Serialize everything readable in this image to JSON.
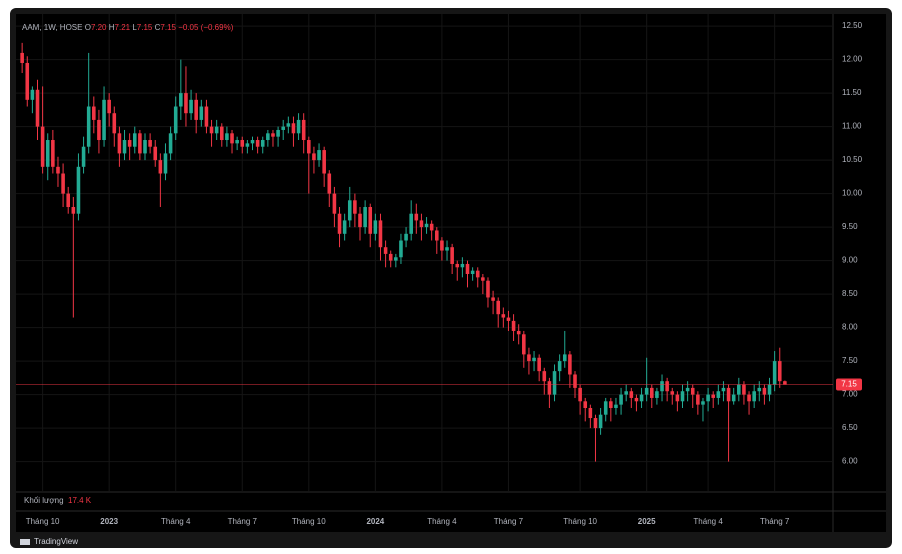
{
  "chart_data": {
    "type": "candlestick",
    "header": {
      "symbol": "AAM, 1W, HOSE",
      "o_key": "O",
      "o_val": "7.20",
      "h_key": "H",
      "h_val": "7.21",
      "l_key": "L",
      "l_val": "7.15",
      "c_key": "C",
      "c_val": "7.15",
      "change": "−0.05 (−0.69%)"
    },
    "open": [
      12.1,
      11.95,
      11.4,
      11.55,
      11.0,
      10.4,
      10.8,
      10.4,
      10.3,
      10.0,
      9.8,
      9.7,
      10.4,
      10.7,
      11.3,
      11.1,
      10.8,
      11.4,
      11.2,
      10.9,
      10.6,
      10.8,
      10.7,
      10.9,
      10.6,
      10.8,
      10.7,
      10.5,
      10.3,
      10.6,
      10.9,
      11.3,
      11.5,
      11.2,
      11.4,
      11.1,
      11.3,
      11.0,
      10.9,
      11.0,
      10.8,
      10.9,
      10.75,
      10.8,
      10.7,
      10.75,
      10.8,
      10.7,
      10.8,
      10.9,
      10.85,
      10.95,
      11.0,
      11.05,
      10.9,
      11.1,
      10.8,
      10.6,
      10.5,
      10.65,
      10.3,
      10.0,
      9.7,
      9.4,
      9.6,
      9.9,
      9.7,
      9.5,
      9.8,
      9.4,
      9.6,
      9.2,
      9.1,
      9.0,
      9.05,
      9.3,
      9.4,
      9.7,
      9.6,
      9.5,
      9.55,
      9.45,
      9.3,
      9.15,
      9.2,
      8.95,
      8.9,
      8.95,
      8.8,
      8.85,
      8.75,
      8.7,
      8.45,
      8.4,
      8.2,
      8.15,
      8.1,
      7.95,
      7.9,
      7.6,
      7.5,
      7.55,
      7.35,
      7.2,
      7.0,
      7.35,
      7.5,
      7.6,
      7.3,
      7.1,
      6.9,
      6.8,
      6.65,
      6.5,
      6.7,
      6.9,
      6.8,
      6.85,
      7.0,
      7.05,
      6.95,
      6.9,
      7.0,
      7.1,
      6.95,
      7.05,
      7.2,
      7.05,
      7.0,
      6.9,
      7.05,
      7.1,
      7.0,
      6.85,
      6.9,
      7.0,
      6.95,
      7.05,
      7.1,
      6.9,
      7.0,
      7.15,
      7.0,
      6.9,
      7.05,
      7.1,
      7.0,
      7.15,
      7.5,
      7.2
    ],
    "high": [
      12.25,
      12.05,
      11.6,
      11.7,
      11.6,
      10.9,
      10.95,
      10.55,
      10.45,
      10.1,
      9.95,
      10.6,
      10.85,
      12.1,
      11.45,
      11.25,
      11.6,
      11.5,
      11.3,
      11.0,
      10.95,
      10.9,
      11.0,
      10.95,
      10.9,
      10.9,
      10.8,
      10.6,
      10.75,
      11.0,
      11.45,
      12.0,
      11.9,
      11.55,
      11.5,
      11.4,
      11.4,
      11.1,
      11.1,
      11.05,
      11.0,
      10.95,
      10.85,
      10.85,
      10.8,
      10.85,
      10.85,
      10.85,
      10.95,
      10.95,
      11.0,
      11.1,
      11.15,
      11.15,
      11.2,
      11.2,
      10.85,
      10.7,
      10.75,
      10.7,
      10.35,
      10.1,
      9.8,
      9.7,
      10.1,
      10.0,
      9.8,
      9.9,
      9.85,
      9.7,
      9.7,
      9.3,
      9.15,
      9.1,
      9.4,
      9.5,
      9.9,
      9.85,
      9.7,
      9.65,
      9.6,
      9.5,
      9.35,
      9.3,
      9.25,
      9.0,
      9.05,
      9.0,
      8.9,
      8.9,
      8.8,
      8.75,
      8.55,
      8.45,
      8.3,
      8.25,
      8.2,
      8.05,
      7.95,
      7.7,
      7.65,
      7.6,
      7.4,
      7.25,
      7.45,
      7.6,
      7.95,
      7.65,
      7.35,
      7.15,
      6.95,
      6.85,
      6.7,
      6.8,
      6.95,
      6.95,
      6.95,
      7.1,
      7.15,
      7.1,
      7.0,
      7.1,
      7.55,
      7.15,
      7.1,
      7.3,
      7.25,
      7.1,
      7.05,
      7.15,
      7.2,
      7.15,
      7.05,
      6.95,
      7.1,
      7.05,
      7.15,
      7.2,
      7.15,
      7.1,
      7.25,
      7.2,
      7.05,
      7.15,
      7.2,
      7.15,
      7.25,
      7.65,
      7.7,
      7.21
    ],
    "low": [
      11.8,
      11.3,
      11.2,
      10.8,
      10.3,
      10.2,
      10.3,
      10.1,
      9.8,
      9.7,
      8.15,
      9.6,
      10.3,
      10.6,
      10.9,
      10.6,
      10.7,
      11.0,
      10.7,
      10.4,
      10.5,
      10.5,
      10.6,
      10.5,
      10.5,
      10.6,
      10.4,
      9.8,
      10.2,
      10.5,
      10.8,
      11.1,
      11.0,
      11.1,
      10.9,
      11.0,
      10.9,
      10.7,
      10.8,
      10.7,
      10.7,
      10.6,
      10.65,
      10.6,
      10.6,
      10.65,
      10.6,
      10.6,
      10.7,
      10.7,
      10.7,
      10.8,
      10.9,
      10.7,
      10.8,
      10.6,
      10.0,
      10.3,
      10.4,
      10.1,
      9.8,
      9.5,
      9.2,
      9.3,
      9.5,
      9.5,
      9.3,
      9.4,
      9.2,
      9.3,
      9.0,
      8.9,
      8.9,
      8.9,
      8.95,
      9.2,
      9.3,
      9.4,
      9.3,
      9.4,
      9.3,
      9.1,
      9.0,
      9.0,
      8.8,
      8.7,
      8.75,
      8.6,
      8.7,
      8.6,
      8.5,
      8.3,
      8.2,
      8.0,
      8.0,
      7.95,
      7.8,
      7.75,
      7.4,
      7.3,
      7.35,
      7.2,
      7.0,
      6.8,
      6.9,
      7.2,
      7.4,
      7.1,
      6.95,
      6.7,
      6.6,
      6.5,
      6.0,
      6.4,
      6.6,
      6.6,
      6.7,
      6.7,
      6.9,
      6.8,
      6.75,
      6.8,
      6.9,
      6.8,
      6.85,
      6.9,
      6.9,
      6.85,
      6.75,
      6.8,
      6.9,
      6.8,
      6.7,
      6.6,
      6.75,
      6.8,
      6.85,
      6.9,
      6.0,
      6.85,
      6.9,
      6.85,
      6.7,
      6.8,
      6.9,
      6.85,
      6.9,
      7.05,
      7.1,
      7.15
    ],
    "close": [
      11.95,
      11.4,
      11.55,
      11.0,
      10.4,
      10.8,
      10.4,
      10.3,
      10.0,
      9.8,
      9.7,
      10.4,
      10.7,
      11.3,
      11.1,
      10.8,
      11.4,
      11.2,
      10.9,
      10.6,
      10.8,
      10.7,
      10.9,
      10.6,
      10.8,
      10.7,
      10.5,
      10.3,
      10.6,
      10.9,
      11.3,
      11.5,
      11.2,
      11.4,
      11.1,
      11.3,
      11.0,
      10.9,
      11.0,
      10.8,
      10.9,
      10.75,
      10.8,
      10.7,
      10.75,
      10.8,
      10.7,
      10.8,
      10.9,
      10.85,
      10.95,
      11.0,
      11.05,
      10.9,
      11.1,
      10.8,
      10.6,
      10.5,
      10.65,
      10.3,
      10.0,
      9.7,
      9.4,
      9.6,
      9.9,
      9.7,
      9.5,
      9.8,
      9.4,
      9.6,
      9.2,
      9.1,
      9.0,
      9.05,
      9.3,
      9.4,
      9.7,
      9.6,
      9.5,
      9.55,
      9.45,
      9.3,
      9.15,
      9.2,
      8.95,
      8.9,
      8.95,
      8.8,
      8.85,
      8.75,
      8.7,
      8.45,
      8.4,
      8.2,
      8.15,
      8.1,
      7.95,
      7.9,
      7.6,
      7.5,
      7.55,
      7.35,
      7.2,
      7.0,
      7.35,
      7.5,
      7.6,
      7.3,
      7.1,
      6.9,
      6.8,
      6.65,
      6.5,
      6.7,
      6.9,
      6.8,
      6.85,
      7.0,
      7.05,
      6.95,
      6.9,
      7.0,
      7.1,
      6.95,
      7.05,
      7.2,
      7.05,
      7.0,
      6.9,
      7.05,
      7.1,
      7.0,
      6.85,
      6.9,
      7.0,
      6.95,
      7.05,
      7.1,
      6.9,
      7.0,
      7.15,
      7.0,
      6.9,
      7.05,
      7.1,
      7.0,
      7.15,
      7.5,
      7.2,
      7.15
    ],
    "up_color": "#22ab94",
    "down_color": "#f23645",
    "last_price": 7.15,
    "ylim": [
      5.546,
      12.681
    ],
    "yticks": [
      {
        "value": 6,
        "label": "6.00"
      },
      {
        "value": 6.5,
        "label": "6.50"
      },
      {
        "value": 7,
        "label": "7.00"
      },
      {
        "value": 7.5,
        "label": "7.50"
      },
      {
        "value": 8,
        "label": "8.00"
      },
      {
        "value": 8.5,
        "label": "8.50"
      },
      {
        "value": 9,
        "label": "9.00"
      },
      {
        "value": 9.5,
        "label": "9.50"
      },
      {
        "value": 10,
        "label": "10.00"
      },
      {
        "value": 10.5,
        "label": "10.50"
      },
      {
        "value": 11,
        "label": "11.00"
      },
      {
        "value": 11.5,
        "label": "11.50"
      },
      {
        "value": 12,
        "label": "12.00"
      },
      {
        "value": 12.5,
        "label": "12.50"
      }
    ],
    "xlim": [
      -1.2,
      158.4
    ],
    "xticks": [
      {
        "value": 4,
        "label": "Tháng 10"
      },
      {
        "value": 17,
        "label": "2023"
      },
      {
        "value": 30,
        "label": "Tháng 4"
      },
      {
        "value": 43,
        "label": "Tháng 7"
      },
      {
        "value": 56,
        "label": "Tháng 10"
      },
      {
        "value": 69,
        "label": "2024"
      },
      {
        "value": 82,
        "label": "Tháng 4"
      },
      {
        "value": 95,
        "label": "Tháng 7"
      },
      {
        "value": 109,
        "label": "Tháng 10"
      },
      {
        "value": 122,
        "label": "2025"
      },
      {
        "value": 134,
        "label": "Tháng 4"
      },
      {
        "value": 147,
        "label": "Tháng 7"
      }
    ],
    "grid": true,
    "volume": {
      "title": "Khối lượng",
      "value_label": "17.4 K"
    },
    "footer": "TradingView"
  }
}
